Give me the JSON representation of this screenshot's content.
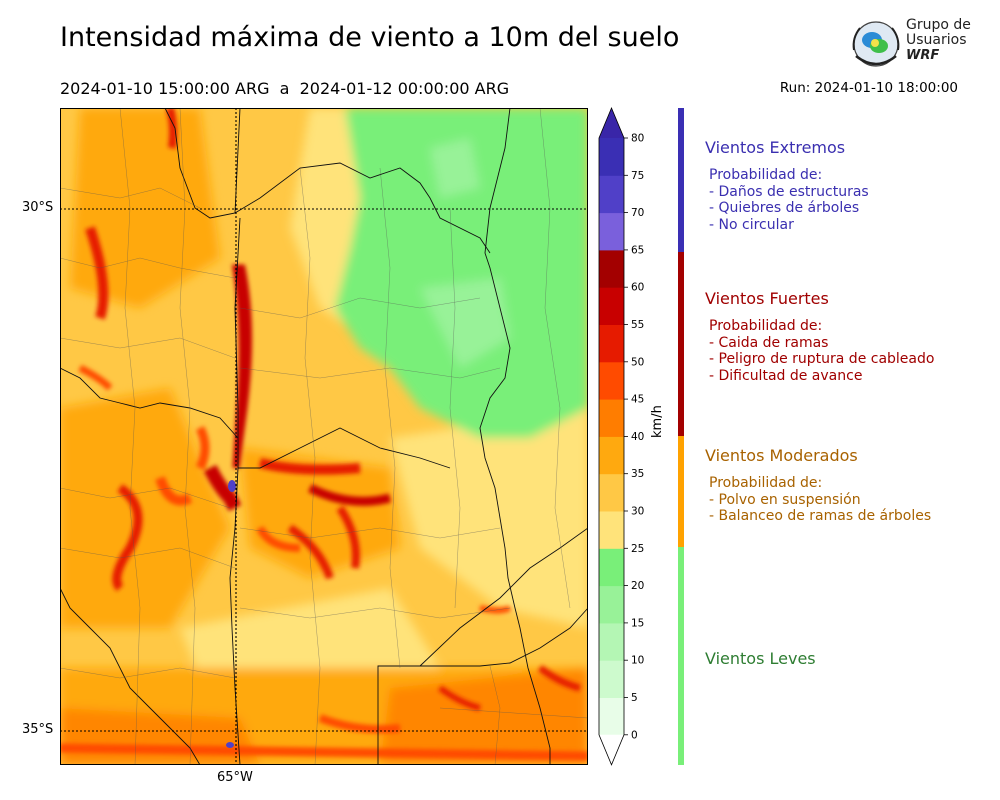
{
  "header": {
    "title": "Intensidad máxima de viento a 10m del suelo",
    "period": "2024-01-10 15:00:00 ARG  a  2024-01-12 00:00:00 ARG",
    "run": "Run: 2024-01-10 18:00:00"
  },
  "logo": {
    "line1": "Grupo de",
    "line2": "Usuarios",
    "line3": "WRF"
  },
  "map": {
    "lat_labels": [
      "30°S",
      "35°S"
    ],
    "lon_labels": [
      "65°W"
    ]
  },
  "colorbar": {
    "unit": "km/h",
    "ticks": [
      "0",
      "5",
      "10",
      "15",
      "20",
      "25",
      "30",
      "35",
      "40",
      "45",
      "50",
      "55",
      "60",
      "65",
      "70",
      "75",
      "80"
    ],
    "colors": [
      "#e8fde8",
      "#cdfacd",
      "#b4f6b4",
      "#98f298",
      "#79ef79",
      "#ffe37a",
      "#ffc845",
      "#ffa90f",
      "#ff7d00",
      "#ff4b00",
      "#e61b00",
      "#c80000",
      "#a30000",
      "#7a60dc",
      "#5040c8",
      "#3a2fb4",
      "#3926a8"
    ]
  },
  "legend": {
    "groups": [
      {
        "title": "Vientos Extremos",
        "color": "#3a2fb0",
        "lines": [
          "Probabilidad de:",
          "- Daños de estructuras",
          "- Quiebres de árboles",
          "- No circular"
        ]
      },
      {
        "title": "Vientos Fuertes",
        "color": "#a00000",
        "lines": [
          "Probabilidad de:",
          "- Caida de ramas",
          "- Peligro de ruptura de cableado",
          "- Dificultad de avance"
        ]
      },
      {
        "title": "Vientos Moderados",
        "color": "#a86200",
        "lines": [
          "Probabilidad de:",
          "- Polvo en suspensión",
          "- Balanceo de ramas de árboles"
        ]
      },
      {
        "title": "Vientos Leves",
        "color": "#2e7d32",
        "lines": []
      }
    ],
    "bar_colors": [
      "#3a2fb4",
      "#a30000",
      "#ffa200",
      "#79ef79"
    ]
  }
}
